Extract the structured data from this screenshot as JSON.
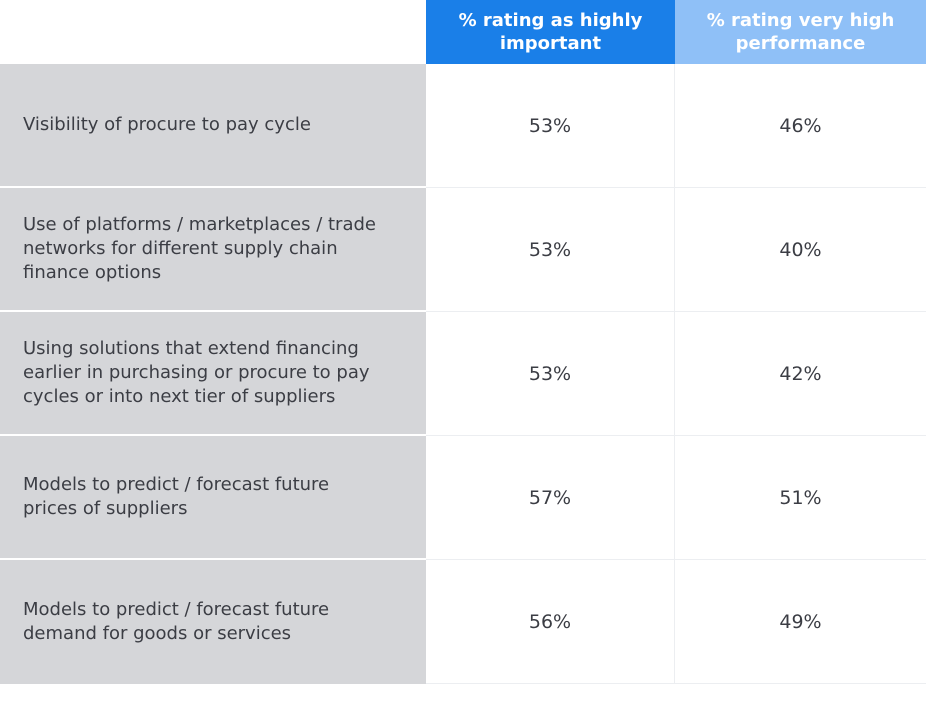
{
  "chart_data": {
    "type": "table",
    "columns": [
      "% rating as highly important",
      "% rating very high performance"
    ],
    "rows": [
      {
        "label": "Visibility of procure to pay cycle",
        "values": [
          "53%",
          "46%"
        ]
      },
      {
        "label": "Use of platforms / marketplaces / trade networks for different supply chain finance options",
        "values": [
          "53%",
          "40%"
        ]
      },
      {
        "label": "Using solutions that extend financing earlier in purchasing or procure to pay cycles or into next tier of suppliers",
        "values": [
          "53%",
          "42%"
        ]
      },
      {
        "label": "Models to predict / forecast future prices of suppliers",
        "values": [
          "57%",
          "51%"
        ]
      },
      {
        "label": "Models to predict / forecast future demand for goods or services",
        "values": [
          "56%",
          "49%"
        ]
      }
    ],
    "colors": {
      "header_primary": "#1a7fe8",
      "header_secondary": "#8fc0f7",
      "label_background": "#d5d6d9"
    }
  }
}
